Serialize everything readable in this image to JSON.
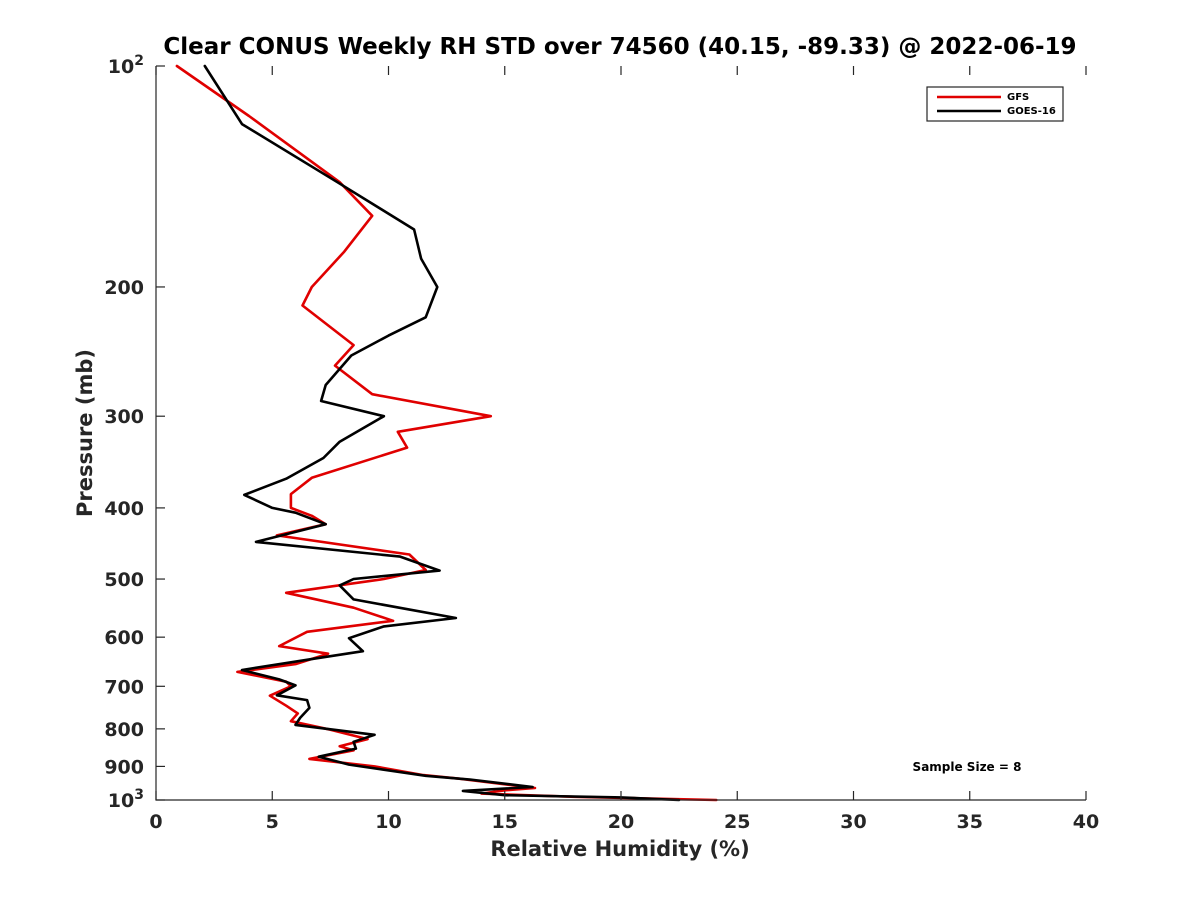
{
  "chart_data": {
    "type": "line",
    "title": "Clear CONUS Weekly RH STD over 74560 (40.15, -89.33) @ 2022-06-19",
    "xlabel": "Relative Humidity (%)",
    "ylabel": "Pressure (mb)",
    "xlim": [
      0,
      40
    ],
    "ylim": [
      100,
      1000
    ],
    "y_scale": "log",
    "y_reversed": true,
    "x_ticks": [
      "0",
      "5",
      "10",
      "15",
      "20",
      "25",
      "30",
      "35",
      "40"
    ],
    "y_ticks": [
      {
        "value": 100,
        "label": "10",
        "sup": "2"
      },
      {
        "value": 200,
        "label": "200"
      },
      {
        "value": 300,
        "label": "300"
      },
      {
        "value": 400,
        "label": "400"
      },
      {
        "value": 500,
        "label": "500"
      },
      {
        "value": 600,
        "label": "600"
      },
      {
        "value": 700,
        "label": "700"
      },
      {
        "value": 800,
        "label": "800"
      },
      {
        "value": 900,
        "label": "900"
      },
      {
        "value": 1000,
        "label": "10",
        "sup": "3"
      }
    ],
    "grid": false,
    "legend_position": "top-right",
    "annotation": "Sample Size = 8",
    "series": [
      {
        "name": "GFS",
        "color": "#e00000",
        "points": [
          [
            0.9,
            100
          ],
          [
            4.0,
            117
          ],
          [
            7.9,
            144
          ],
          [
            9.3,
            160
          ],
          [
            8.1,
            179
          ],
          [
            6.7,
            200
          ],
          [
            6.3,
            212
          ],
          [
            8.5,
            240
          ],
          [
            7.7,
            256
          ],
          [
            9.3,
            280
          ],
          [
            14.4,
            300
          ],
          [
            10.4,
            315
          ],
          [
            10.8,
            331
          ],
          [
            6.7,
            364
          ],
          [
            5.8,
            383
          ],
          [
            5.8,
            400
          ],
          [
            6.7,
            410
          ],
          [
            7.3,
            421
          ],
          [
            5.2,
            436
          ],
          [
            10.9,
            463
          ],
          [
            11.6,
            486
          ],
          [
            9.8,
            500
          ],
          [
            5.6,
            522
          ],
          [
            8.5,
            547
          ],
          [
            10.2,
            570
          ],
          [
            6.5,
            590
          ],
          [
            5.3,
            617
          ],
          [
            7.4,
            632
          ],
          [
            6.0,
            653
          ],
          [
            3.5,
            669
          ],
          [
            5.6,
            690
          ],
          [
            5.8,
            700
          ],
          [
            4.9,
            721
          ],
          [
            5.6,
            744
          ],
          [
            6.1,
            762
          ],
          [
            5.8,
            781
          ],
          [
            7.5,
            802
          ],
          [
            9.1,
            826
          ],
          [
            7.9,
            845
          ],
          [
            8.5,
            856
          ],
          [
            6.6,
            879
          ],
          [
            9.4,
            900
          ],
          [
            11.5,
            925
          ],
          [
            13.0,
            935
          ],
          [
            16.3,
            963
          ],
          [
            15.0,
            970
          ],
          [
            14.0,
            980
          ],
          [
            18.0,
            990
          ],
          [
            24.1,
            1000
          ]
        ]
      },
      {
        "name": "GOES-16",
        "color": "#000000",
        "points": [
          [
            2.1,
            100
          ],
          [
            3.7,
            120
          ],
          [
            7.8,
            144
          ],
          [
            11.1,
            167
          ],
          [
            11.4,
            183
          ],
          [
            12.1,
            200
          ],
          [
            11.6,
            220
          ],
          [
            10.0,
            233
          ],
          [
            8.4,
            248
          ],
          [
            7.3,
            272
          ],
          [
            7.1,
            286
          ],
          [
            9.8,
            300
          ],
          [
            7.9,
            325
          ],
          [
            7.2,
            342
          ],
          [
            5.6,
            365
          ],
          [
            3.8,
            384
          ],
          [
            5.0,
            400
          ],
          [
            6.0,
            406
          ],
          [
            7.3,
            421
          ],
          [
            4.3,
            445
          ],
          [
            10.5,
            466
          ],
          [
            12.2,
            487
          ],
          [
            8.5,
            500
          ],
          [
            7.9,
            510
          ],
          [
            8.5,
            533
          ],
          [
            12.9,
            565
          ],
          [
            9.8,
            580
          ],
          [
            8.3,
            602
          ],
          [
            8.9,
            627
          ],
          [
            6.8,
            642
          ],
          [
            3.7,
            665
          ],
          [
            5.3,
            685
          ],
          [
            6.0,
            698
          ],
          [
            5.2,
            720
          ],
          [
            6.5,
            731
          ],
          [
            6.6,
            749
          ],
          [
            6.2,
            773
          ],
          [
            6.0,
            790
          ],
          [
            9.4,
            815
          ],
          [
            8.5,
            833
          ],
          [
            8.6,
            851
          ],
          [
            7.0,
            873
          ],
          [
            8.3,
            895
          ],
          [
            11.6,
            927
          ],
          [
            13.5,
            938
          ],
          [
            16.2,
            960
          ],
          [
            13.2,
            972
          ],
          [
            15.0,
            985
          ],
          [
            20.0,
            992
          ],
          [
            22.5,
            1000
          ]
        ]
      }
    ]
  }
}
